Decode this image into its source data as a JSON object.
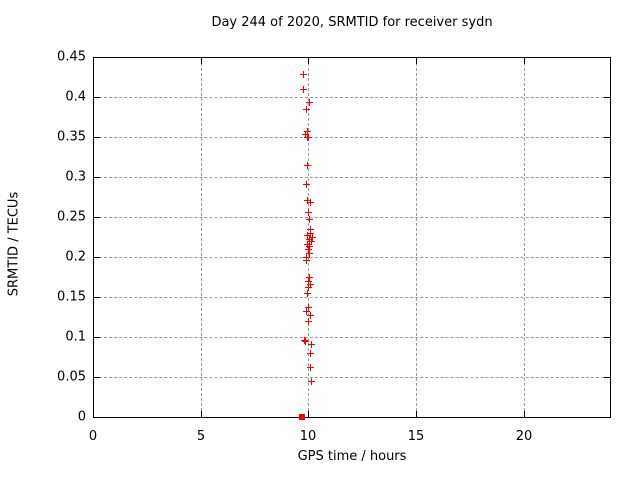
{
  "chart_data": {
    "type": "scatter",
    "title": "Day 244 of 2020, SRMTID for receiver sydn",
    "xlabel": "GPS time / hours",
    "ylabel": "SRMTID / TECUs",
    "xlim": [
      0,
      24
    ],
    "ylim": [
      0,
      0.45
    ],
    "x_ticks": [
      0,
      5,
      10,
      15,
      20
    ],
    "x_tick_labels": [
      "0",
      "5",
      "10",
      "15",
      "20"
    ],
    "y_ticks": [
      0,
      0.05,
      0.1,
      0.15,
      0.2,
      0.25,
      0.3,
      0.35,
      0.4,
      0.45
    ],
    "y_tick_labels": [
      "0",
      "0.05",
      "0.1",
      "0.15",
      "0.2",
      "0.25",
      "0.3",
      "0.35",
      "0.4",
      "0.45"
    ],
    "grid": true,
    "legend": false,
    "marker": "plus",
    "marker_color": "#ff0000",
    "axis_color": "#000000",
    "grid_color": "#9c9c9c",
    "series": [
      {
        "name": "SRMTID",
        "points": [
          [
            9.76,
            0.428
          ],
          [
            9.76,
            0.41
          ],
          [
            10.05,
            0.393
          ],
          [
            9.89,
            0.384
          ],
          [
            9.97,
            0.357
          ],
          [
            9.88,
            0.353
          ],
          [
            9.95,
            0.35
          ],
          [
            9.99,
            0.349
          ],
          [
            9.98,
            0.315
          ],
          [
            9.89,
            0.291
          ],
          [
            9.97,
            0.271
          ],
          [
            10.11,
            0.268
          ],
          [
            10.02,
            0.256
          ],
          [
            10.04,
            0.247
          ],
          [
            10.11,
            0.235
          ],
          [
            10.08,
            0.229
          ],
          [
            9.95,
            0.227
          ],
          [
            10.19,
            0.224
          ],
          [
            10.04,
            0.222
          ],
          [
            10.13,
            0.219
          ],
          [
            9.97,
            0.216
          ],
          [
            10.06,
            0.213
          ],
          [
            10.0,
            0.21
          ],
          [
            10.04,
            0.205
          ],
          [
            9.92,
            0.199
          ],
          [
            9.9,
            0.196
          ],
          [
            10.07,
            0.175
          ],
          [
            10.02,
            0.17
          ],
          [
            10.11,
            0.166
          ],
          [
            10.02,
            0.162
          ],
          [
            9.97,
            0.155
          ],
          [
            10.02,
            0.137
          ],
          [
            9.92,
            0.132
          ],
          [
            10.11,
            0.127
          ],
          [
            10.02,
            0.12
          ],
          [
            9.83,
            0.096
          ],
          [
            9.88,
            0.094
          ],
          [
            10.16,
            0.091
          ],
          [
            10.11,
            0.079
          ],
          [
            10.11,
            0.062
          ],
          [
            10.16,
            0.045
          ]
        ]
      }
    ],
    "zero_marker": {
      "x": 9.7,
      "y": 0,
      "shape": "filled-square"
    }
  }
}
